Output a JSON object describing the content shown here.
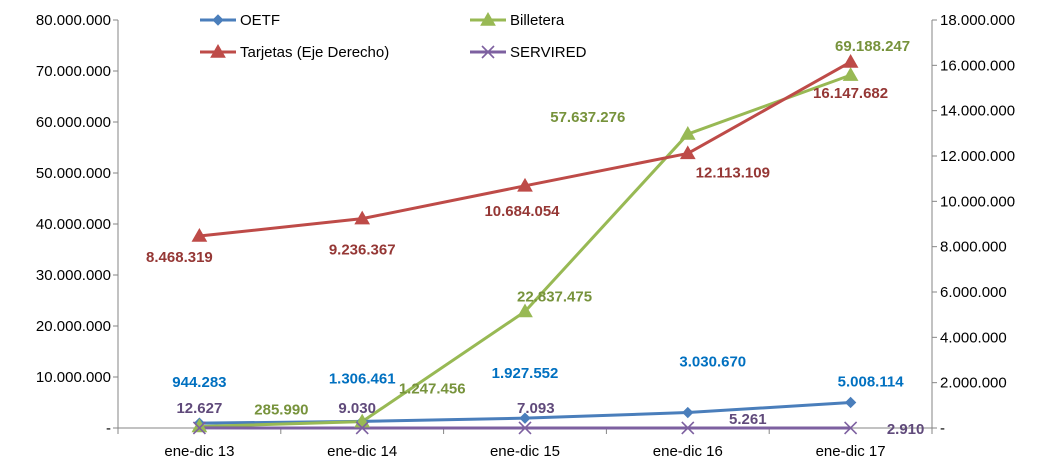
{
  "chart_data": {
    "type": "line",
    "title": "",
    "xlabel": "",
    "ylabel": "",
    "categories": [
      "ene-dic 13",
      "ene-dic 14",
      "ene-dic 15",
      "ene-dic 16",
      "ene-dic 17"
    ],
    "y_left": {
      "range": [
        0,
        80000000
      ],
      "step": 10000000,
      "tick_labels": [
        "-",
        "10.000.000",
        "20.000.000",
        "30.000.000",
        "40.000.000",
        "50.000.000",
        "60.000.000",
        "70.000.000",
        "80.000.000"
      ]
    },
    "y_right": {
      "range": [
        0,
        18000000
      ],
      "step": 2000000,
      "tick_labels": [
        "-",
        "2.000.000",
        "4.000.000",
        "6.000.000",
        "8.000.000",
        "10.000.000",
        "12.000.000",
        "14.000.000",
        "16.000.000",
        "18.000.000"
      ]
    },
    "grid": false,
    "legend_position": "top",
    "series": [
      {
        "name": "OETF",
        "axis": "left",
        "color": "#4a7ebb",
        "label_color": "#0070c0",
        "marker": "diamond",
        "values": [
          944283,
          1306461,
          1927552,
          3030670,
          5008114
        ],
        "labels": [
          "944.283",
          "1.306.461",
          "1.927.552",
          "3.030.670",
          "5.008.114"
        ]
      },
      {
        "name": "Billetera",
        "axis": "left",
        "color": "#98b954",
        "label_color": "#77933c",
        "marker": "triangle",
        "values": [
          285990,
          1247456,
          22837475,
          57637276,
          69188247
        ],
        "labels": [
          "285.990",
          "1.247.456",
          "22.837.475",
          "57.637.276",
          "69.188.247"
        ]
      },
      {
        "name": "Tarjetas (Eje Derecho)",
        "axis": "right",
        "color": "#be4b48",
        "label_color": "#953735",
        "marker": "triangle",
        "values": [
          8468319,
          9236367,
          10684054,
          12113109,
          16147682
        ],
        "labels": [
          "8.468.319",
          "9.236.367",
          "10.684.054",
          "12.113.109",
          "16.147.682"
        ]
      },
      {
        "name": "SERVIRED",
        "axis": "left",
        "color": "#7d60a0",
        "label_color": "#604a7b",
        "marker": "x",
        "values": [
          12627,
          9030,
          7093,
          5261,
          2910
        ],
        "labels": [
          "12.627",
          "9.030",
          "7.093",
          "5.261",
          "2.910"
        ]
      }
    ]
  }
}
